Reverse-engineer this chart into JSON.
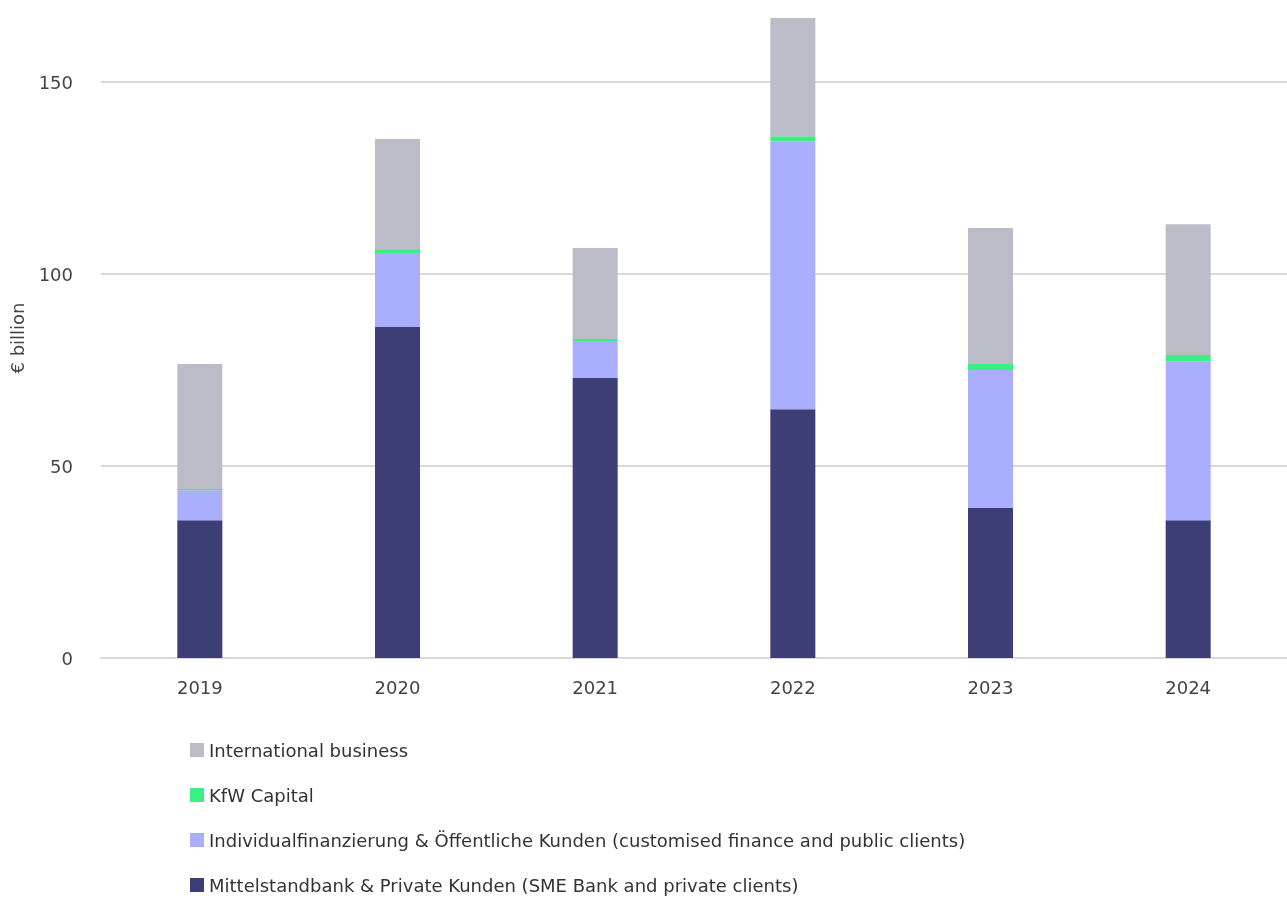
{
  "chart_data": {
    "type": "bar",
    "stacked": true,
    "ylabel": "€ billion",
    "categories": [
      "2019",
      "2020",
      "2021",
      "2022",
      "2023",
      "2024"
    ],
    "ylim": [
      0,
      166.7
    ],
    "yticks": [
      0,
      50,
      100,
      150
    ],
    "grid": "y",
    "legend": "bottom left",
    "series": [
      {
        "name": "Mittelstandbank & Private Kunden (SME Bank and private clients)",
        "color": "#3e3e76",
        "values": [
          35.9,
          86.2,
          72.9,
          64.8,
          39.1,
          35.9
        ]
      },
      {
        "name": "Individualfinanzierung & Öffentliche Kunden (customised finance and public clients)",
        "color": "#abaefe",
        "values": [
          7.8,
          19.3,
          9.7,
          69.8,
          35.9,
          41.4
        ]
      },
      {
        "name": "KfW Capital",
        "color": "#3ded86",
        "values": [
          0.3,
          0.8,
          0.5,
          1.3,
          1.8,
          1.6
        ]
      },
      {
        "name": "International business",
        "color": "#bcbcc8",
        "values": [
          32.6,
          28.9,
          23.7,
          30.8,
          35.2,
          34.1
        ]
      }
    ]
  }
}
